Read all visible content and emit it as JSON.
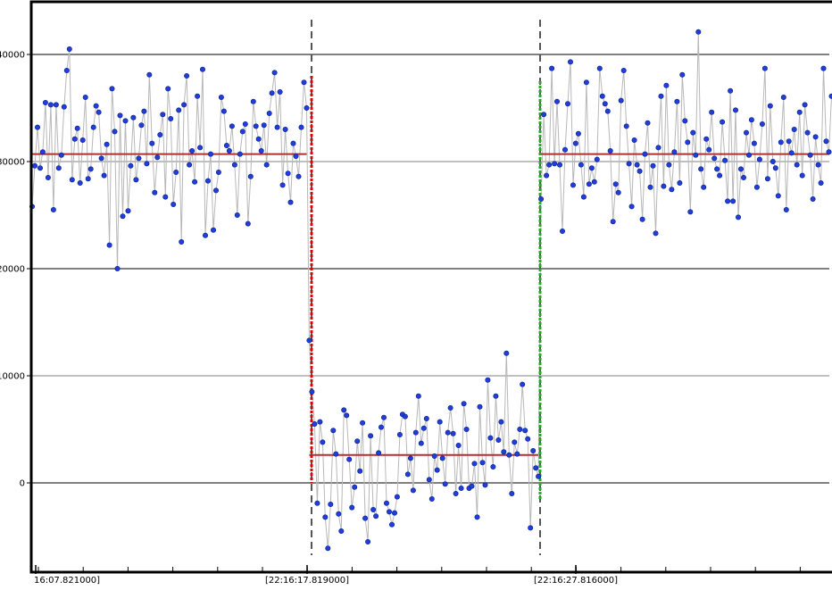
{
  "chart_data": {
    "type": "scatter",
    "title": "",
    "xlabel": "",
    "ylabel": "",
    "ylim": [
      -8400,
      44800
    ],
    "grid": true,
    "legend": "none",
    "y_ticks": [
      0,
      10000,
      20000,
      30000,
      40000
    ],
    "y_tick_labels": [
      "0",
      "10000",
      "20000",
      "30000",
      "40000"
    ],
    "x_tick_labels": [
      "16:07.821000]",
      "[22:16:17.819000]",
      "[22:16:27.816000]"
    ],
    "series": [
      {
        "segment": 1,
        "sample_index_range": [
          0,
          103
        ],
        "mean": 30700,
        "values": [
          25800,
          29600,
          33200,
          29400,
          30900,
          35500,
          28500,
          35300,
          25500,
          35300,
          29400,
          30600,
          35100,
          38500,
          40500,
          28300,
          32100,
          33100,
          28000,
          32000,
          36000,
          28400,
          29300,
          33200,
          35200,
          34600,
          30300,
          28700,
          31600,
          22200,
          36800,
          32800,
          20000,
          34300,
          24900,
          33800,
          25400,
          29600,
          34100,
          28300,
          30300,
          33400,
          34700,
          29800,
          38100,
          31700,
          27100,
          30400,
          32500,
          34400,
          26700,
          36800,
          34000,
          26000,
          29000,
          34800,
          22500,
          35300,
          38000,
          29700,
          31000,
          28100,
          36100,
          31300,
          38600,
          23100,
          28200,
          30700,
          23600,
          27300,
          29000,
          36000,
          34700,
          31500,
          31000,
          33300,
          29700,
          25000,
          30700,
          32800,
          33500,
          24200,
          28600,
          35600,
          33300,
          32100,
          31000,
          33400,
          29700,
          34500,
          36400,
          38300,
          33200,
          36500,
          27800,
          33000,
          28900,
          26200,
          31700,
          30500,
          28600,
          33200,
          37400,
          35000
        ]
      },
      {
        "segment": 2,
        "sample_index_range": [
          104,
          190
        ],
        "mean": 2600,
        "values": [
          13300,
          8500,
          5500,
          -1900,
          5700,
          3800,
          -3200,
          -6100,
          -2000,
          4900,
          2700,
          -2900,
          -4500,
          6800,
          6300,
          2200,
          -2300,
          -400,
          3900,
          1100,
          5600,
          -3300,
          -5500,
          4400,
          -2500,
          -3100,
          2800,
          5200,
          6100,
          -1900,
          -2700,
          -3900,
          -2800,
          -1300,
          4500,
          6400,
          6200,
          800,
          2300,
          -700,
          4700,
          8100,
          3700,
          5100,
          6000,
          300,
          -1500,
          2500,
          1200,
          5700,
          2300,
          -100,
          4700,
          7000,
          4600,
          -1000,
          3500,
          -500,
          7400,
          5000,
          -500,
          -300,
          1800,
          -3200,
          7100,
          1900,
          -200,
          9600,
          4200,
          1500,
          8100,
          4000,
          5700,
          2900,
          12100,
          2600,
          -1000,
          3800,
          2700,
          5000,
          9200,
          4900,
          4100,
          -4200,
          3000,
          1400,
          600
        ]
      },
      {
        "segment": 3,
        "sample_index_range": [
          191,
          299
        ],
        "mean": 30700,
        "values": [
          26500,
          34400,
          28700,
          29700,
          38700,
          29800,
          35600,
          29700,
          23500,
          31100,
          35400,
          39300,
          27800,
          31700,
          32600,
          29700,
          26700,
          37400,
          27900,
          29400,
          28100,
          30200,
          38700,
          36100,
          35400,
          34700,
          31000,
          24400,
          27900,
          27100,
          35700,
          38500,
          33300,
          29800,
          25800,
          32000,
          29700,
          29100,
          24600,
          30700,
          33600,
          27600,
          29600,
          23300,
          31300,
          36100,
          27700,
          37100,
          29700,
          27400,
          30900,
          35600,
          28000,
          38100,
          33800,
          31800,
          25300,
          32700,
          30600,
          42100,
          29300,
          27600,
          32100,
          31100,
          34600,
          30300,
          29300,
          28700,
          33700,
          30100,
          26300,
          36600,
          26300,
          34800,
          24800,
          29300,
          28500,
          32700,
          30600,
          33900,
          31700,
          27600,
          30200,
          33500,
          38700,
          28400,
          35200,
          30000,
          29400,
          26800,
          31800,
          36000,
          25500,
          31900,
          30800,
          33000,
          29700,
          34600,
          28700,
          35300,
          32700,
          30600,
          26500,
          32300,
          29700,
          28000,
          38700,
          31900,
          30900,
          36100
        ]
      }
    ]
  },
  "colors": {
    "background": "#ffffff",
    "frame": "#000000",
    "grid_major": "#808080",
    "grid_minor": "#c0c0c0",
    "marker_fill": "#1f3fd8",
    "marker_stroke": "#0a1a90",
    "connector": "#b8b8b8",
    "mean_line": "#b03030",
    "step_down": "#dd0000",
    "step_up": "#22aa22",
    "boundary": "#555555"
  }
}
